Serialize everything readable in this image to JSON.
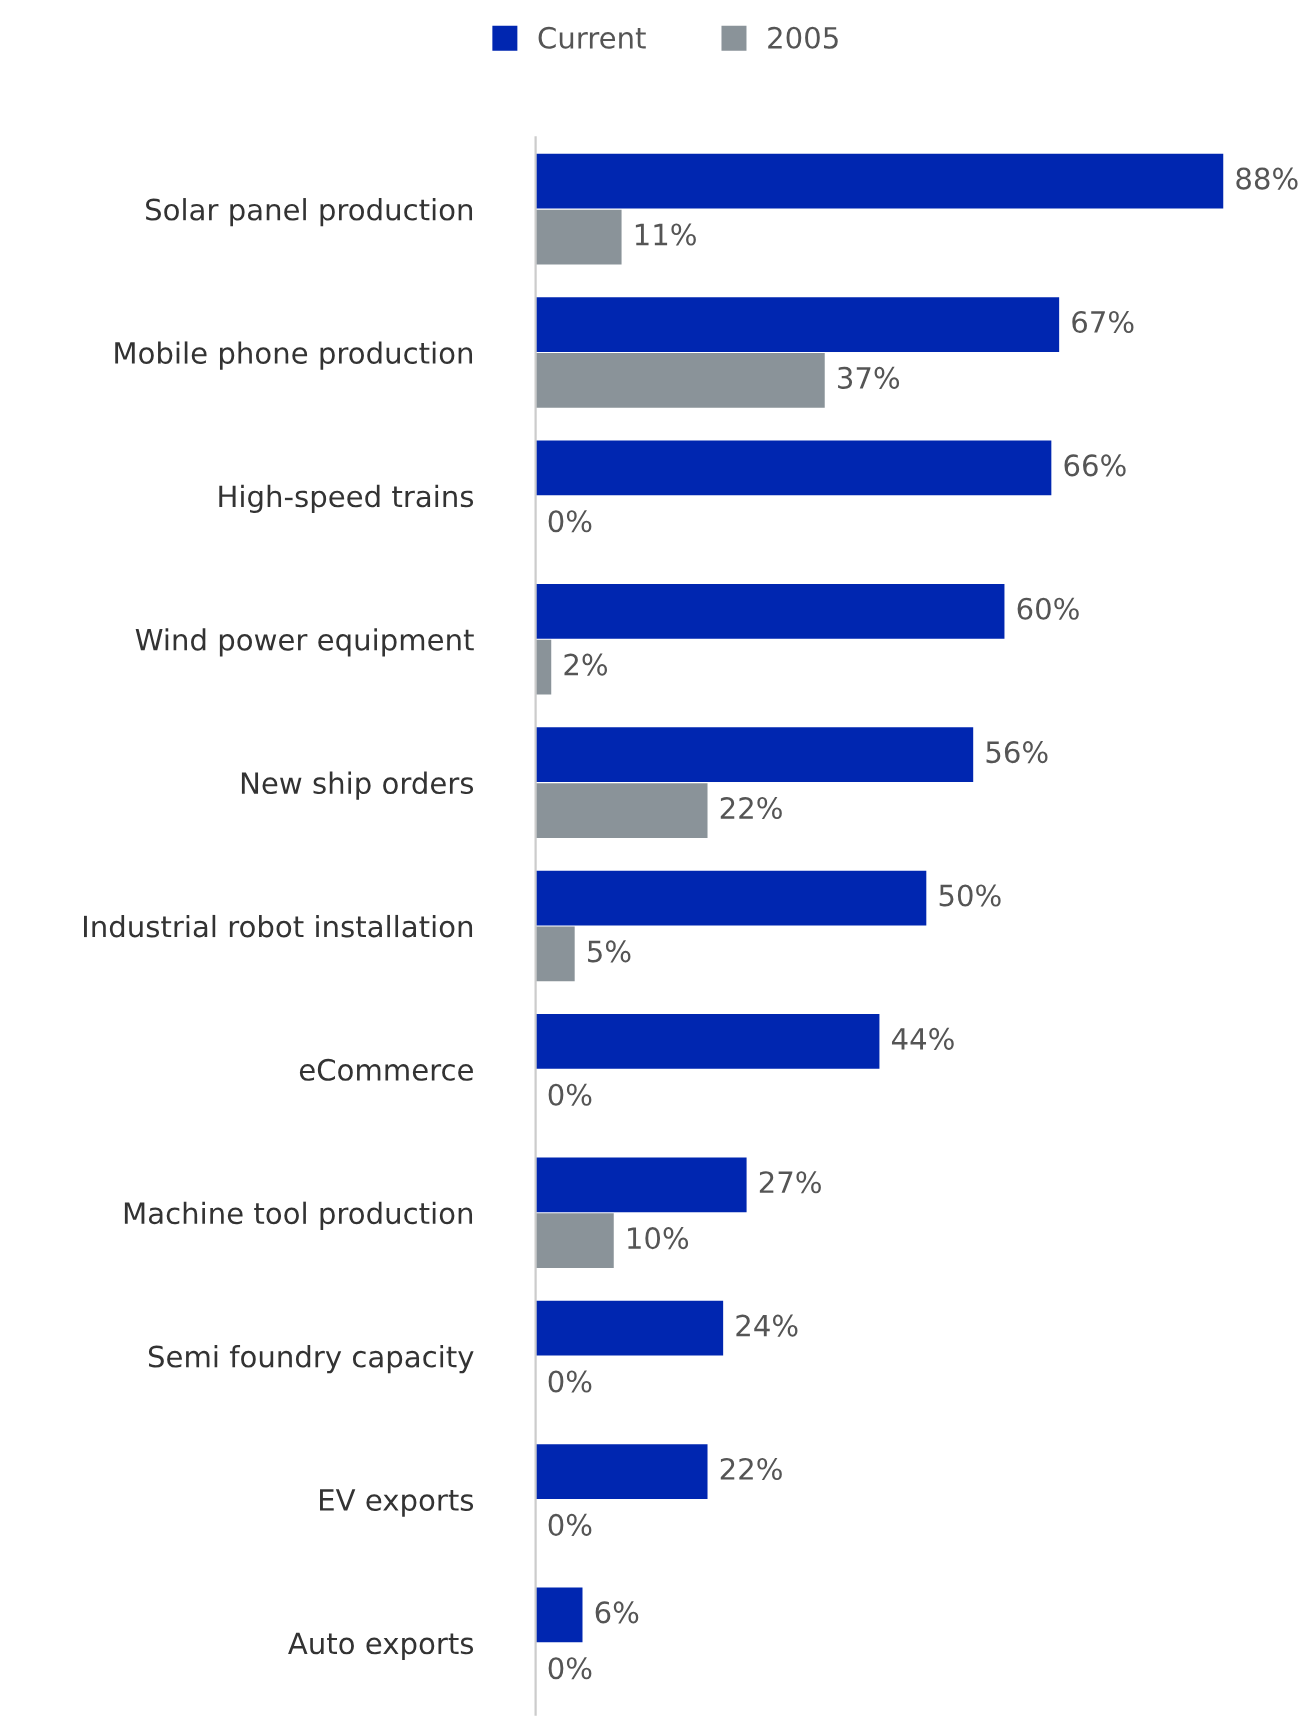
{
  "chart_data": {
    "type": "bar",
    "orientation": "horizontal",
    "categories": [
      "Solar panel production",
      "Mobile phone production",
      "High-speed trains",
      "Wind power equipment",
      "New ship orders",
      "Industrial robot installation",
      "eCommerce",
      "Machine tool production",
      "Semi foundry capacity",
      "EV exports",
      "Auto exports"
    ],
    "series": [
      {
        "name": "Current",
        "color": "#0026b0",
        "values": [
          88,
          67,
          66,
          60,
          56,
          50,
          44,
          27,
          24,
          22,
          6
        ],
        "value_labels": [
          "88%",
          "67%",
          "66%",
          "60%",
          "56%",
          "50%",
          "44%",
          "27%",
          "24%",
          "22%",
          "6%"
        ]
      },
      {
        "name": "2005",
        "color": "#8a9399",
        "values": [
          11,
          37,
          0,
          2,
          22,
          5,
          0,
          10,
          0,
          0,
          0
        ],
        "value_labels": [
          "11%",
          "37%",
          "0%",
          "2%",
          "22%",
          "5%",
          "0%",
          "10%",
          "0%",
          "0%",
          "0%"
        ]
      }
    ],
    "legend": "top",
    "grid": false,
    "tick_labels": "y"
  }
}
